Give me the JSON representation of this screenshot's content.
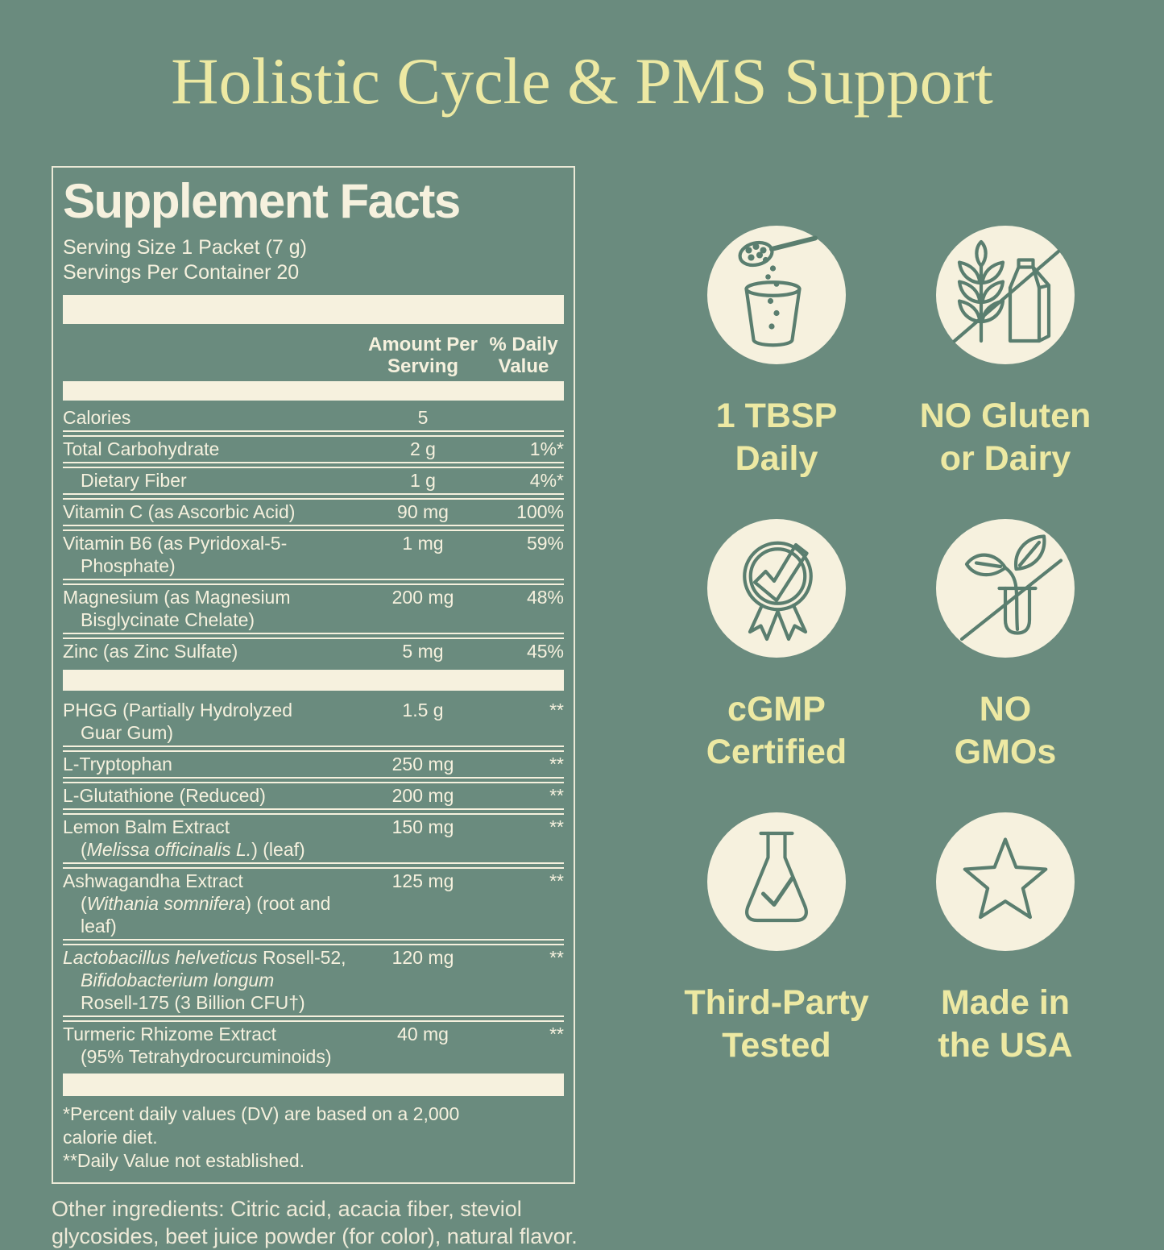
{
  "title": "Holistic Cycle & PMS Support",
  "colors": {
    "background": "#6a8b7e",
    "cream": "#f6f1de",
    "accent_yellow": "#ede9a3",
    "icon_stroke": "#5a7e6f"
  },
  "panel": {
    "title": "Supplement Facts",
    "serving_size": "Serving Size 1 Packet (7 g)",
    "servings_per_container": "Servings Per Container 20",
    "columns": {
      "amount_line1": "Amount Per",
      "amount_line2": "Serving",
      "dv_line1": "% Daily",
      "dv_line2": "Value"
    },
    "rows": [
      {
        "name_lines": [
          [
            {
              "t": "Calories"
            }
          ]
        ],
        "amount": "5",
        "dv": ""
      },
      {
        "name_lines": [
          [
            {
              "t": "Total Carbohydrate"
            }
          ]
        ],
        "amount": "2 g",
        "dv": "1%*"
      },
      {
        "indent_first": true,
        "name_lines": [
          [
            {
              "t": "Dietary Fiber"
            }
          ]
        ],
        "amount": "1 g",
        "dv": "4%*"
      },
      {
        "name_lines": [
          [
            {
              "t": "Vitamin C (as Ascorbic Acid)"
            }
          ]
        ],
        "amount": "90 mg",
        "dv": "100%"
      },
      {
        "name_lines": [
          [
            {
              "t": "Vitamin B6 (as Pyridoxal-5-"
            }
          ],
          [
            {
              "t": "Phosphate)"
            }
          ]
        ],
        "amount": "1 mg",
        "dv": "59%"
      },
      {
        "name_lines": [
          [
            {
              "t": "Magnesium (as Magnesium"
            }
          ],
          [
            {
              "t": "Bisglycinate Chelate)"
            }
          ]
        ],
        "amount": "200 mg",
        "dv": "48%"
      },
      {
        "name_lines": [
          [
            {
              "t": "Zinc (as Zinc Sulfate)"
            }
          ]
        ],
        "amount": "5 mg",
        "dv": "45%"
      },
      {
        "bar_before": true,
        "name_lines": [
          [
            {
              "t": "PHGG (Partially Hydrolyzed"
            }
          ],
          [
            {
              "t": "Guar Gum)"
            }
          ]
        ],
        "amount": "1.5 g",
        "dv": "**"
      },
      {
        "name_lines": [
          [
            {
              "t": "L-Tryptophan"
            }
          ]
        ],
        "amount": "250 mg",
        "dv": "**"
      },
      {
        "name_lines": [
          [
            {
              "t": "L-Glutathione (Reduced)"
            }
          ]
        ],
        "amount": "200 mg",
        "dv": "**"
      },
      {
        "name_lines": [
          [
            {
              "t": "Lemon Balm Extract"
            }
          ],
          [
            {
              "t": "("
            },
            {
              "t": "Melissa officinalis L.",
              "i": true
            },
            {
              "t": ") (leaf)"
            }
          ]
        ],
        "amount": "150 mg",
        "dv": "**"
      },
      {
        "name_lines": [
          [
            {
              "t": "Ashwagandha Extract"
            }
          ],
          [
            {
              "t": "("
            },
            {
              "t": "Withania somnifera",
              "i": true
            },
            {
              "t": ") (root and"
            }
          ],
          [
            {
              "t": "leaf)"
            }
          ]
        ],
        "amount": "125 mg",
        "dv": "**"
      },
      {
        "name_lines": [
          [
            {
              "t": "Lactobacillus helveticus",
              "i": true
            },
            {
              "t": " Rosell-52,"
            }
          ],
          [
            {
              "t": "Bifidobacterium longum",
              "i": true
            }
          ],
          [
            {
              "t": "Rosell-175 (3 Billion CFU†)"
            }
          ]
        ],
        "amount": "120 mg",
        "dv": "**"
      },
      {
        "name_lines": [
          [
            {
              "t": "Turmeric Rhizome Extract"
            }
          ],
          [
            {
              "t": "(95% Tetrahydrocurcuminoids)"
            }
          ]
        ],
        "amount": "40 mg",
        "dv": "**"
      }
    ],
    "footnotes": [
      "*Percent daily values (DV) are based on a 2,000 calorie diet.",
      "**Daily Value not established."
    ]
  },
  "other_ingredients": "Other ingredients: Citric acid, acacia fiber, steviol glycosides, beet juice powder (for color), natural flavor.",
  "badges": [
    {
      "icon": "scoop-glass",
      "label_lines": [
        "1 TBSP",
        "Daily"
      ]
    },
    {
      "icon": "no-gluten-dairy",
      "label_lines": [
        "NO Gluten",
        "or Dairy"
      ]
    },
    {
      "icon": "cgmp-certified",
      "label_lines": [
        "cGMP",
        "Certified"
      ]
    },
    {
      "icon": "no-gmos",
      "label_lines": [
        "NO",
        "GMOs"
      ]
    },
    {
      "icon": "third-party-tested",
      "label_lines": [
        "Third-Party",
        "Tested"
      ]
    },
    {
      "icon": "made-in-usa",
      "label_lines": [
        "Made in",
        "the USA"
      ]
    }
  ]
}
